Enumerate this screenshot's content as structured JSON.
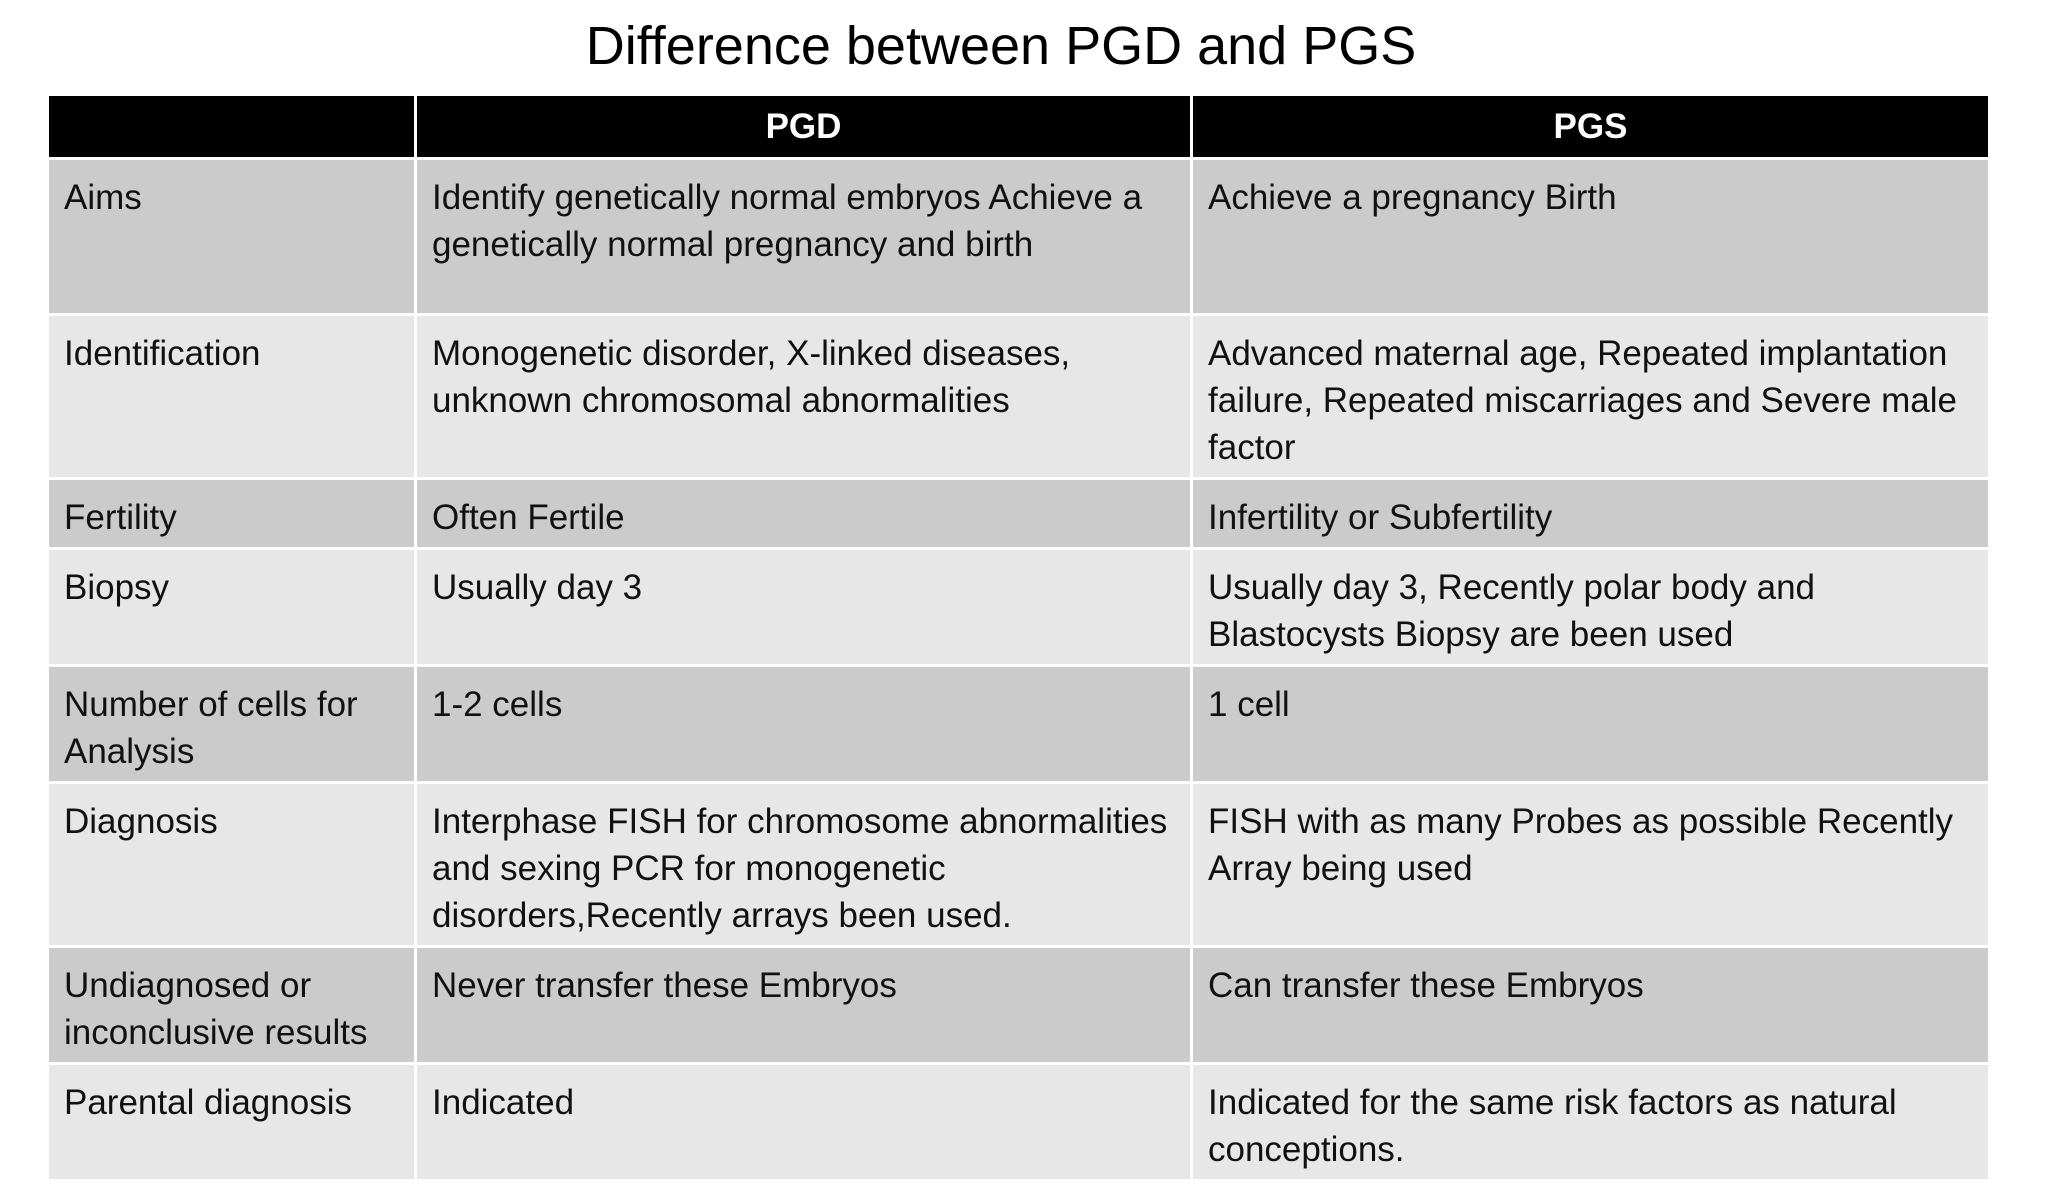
{
  "title": "Difference between PGD and PGS",
  "table": {
    "headers": [
      "",
      "PGD",
      "PGS"
    ],
    "rows": [
      {
        "label": "Aims",
        "pgd": "Identify genetically normal embryos Achieve  a genetically normal pregnancy and birth",
        "pgs": "Achieve a pregnancy Birth"
      },
      {
        "label": "Identification",
        "pgd": "Monogenetic disorder, X-linked diseases, unknown chromosomal abnormalities",
        "pgs": "Advanced maternal age, Repeated implantation failure, Repeated miscarriages and Severe male factor"
      },
      {
        "label": "Fertility",
        "pgd": "Often Fertile",
        "pgs": "Infertility or Subfertility"
      },
      {
        "label": "Biopsy",
        "pgd": "Usually day 3",
        "pgs": "Usually day 3, Recently polar body and Blastocysts Biopsy are been used"
      },
      {
        "label": "Number of cells for Analysis",
        "pgd": "1-2 cells",
        "pgs": "1 cell"
      },
      {
        "label": "Diagnosis",
        "pgd": "Interphase FISH for chromosome abnormalities and sexing PCR for monogenetic disorders,Recently arrays been used.",
        "pgs": "FISH with as many Probes as possible Recently Array being used"
      },
      {
        "label": "Undiagnosed or inconclusive results",
        "pgd": "Never transfer these  Embryos",
        "pgs": "Can transfer these Embryos"
      },
      {
        "label": "Parental diagnosis",
        "pgd": "Indicated",
        "pgs": "Indicated for the same risk factors as natural conceptions."
      }
    ]
  },
  "colors": {
    "header_bg": "#000000",
    "row_dark": "#cbcbcb",
    "row_light": "#e7e7e7"
  }
}
